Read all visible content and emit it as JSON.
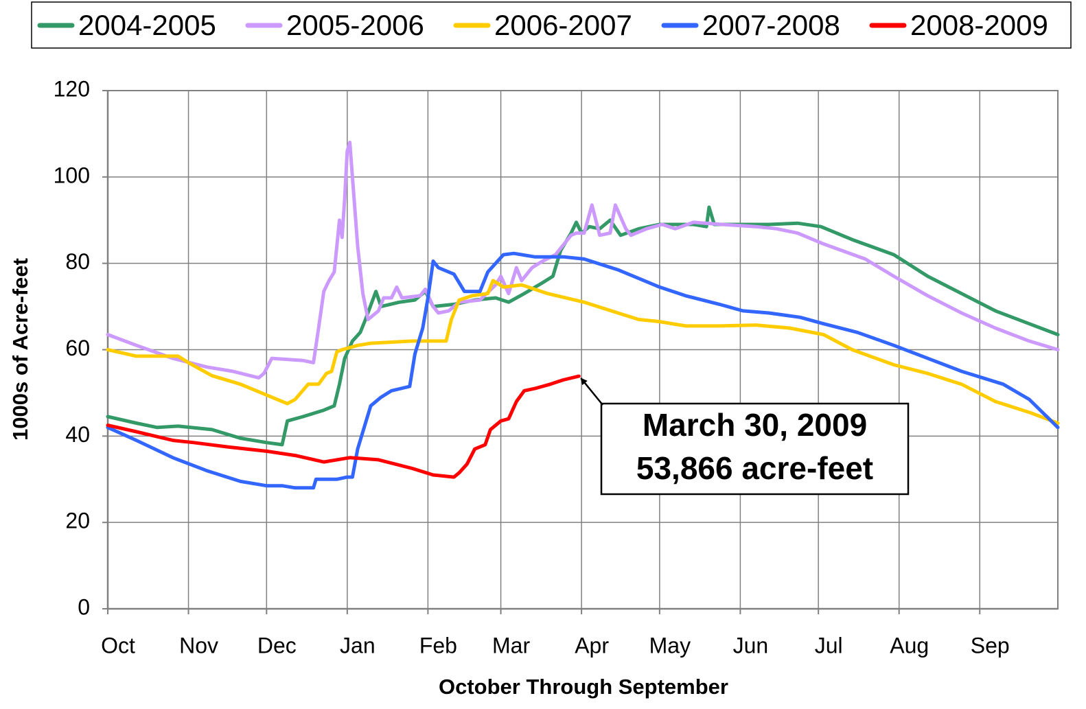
{
  "chart_data": {
    "type": "line",
    "xlabel": "October Through September",
    "ylabel": "1000s of Acre-feet",
    "xlim": [
      0,
      365
    ],
    "xticks": [
      {
        "value": 0,
        "label": "Oct"
      },
      {
        "value": 31,
        "label": "Nov"
      },
      {
        "value": 61,
        "label": "Dec"
      },
      {
        "value": 92,
        "label": "Jan"
      },
      {
        "value": 123,
        "label": "Feb"
      },
      {
        "value": 151,
        "label": "Mar"
      },
      {
        "value": 182,
        "label": "Apr"
      },
      {
        "value": 212,
        "label": "May"
      },
      {
        "value": 243,
        "label": "Jun"
      },
      {
        "value": 273,
        "label": "Jul"
      },
      {
        "value": 304,
        "label": "Aug"
      },
      {
        "value": 335,
        "label": "Sep"
      }
    ],
    "ylim": [
      0,
      120
    ],
    "yticks": [
      0,
      20,
      40,
      60,
      80,
      100,
      120
    ],
    "grid": true,
    "legend": "top",
    "annotation": {
      "lines": [
        "March 30, 2009",
        "53,866 acre-feet"
      ]
    },
    "series": [
      {
        "name": "2004-2005",
        "color": "#339966",
        "x": [
          0,
          11,
          19,
          27,
          40,
          51,
          61,
          67,
          69,
          75,
          83,
          87,
          89,
          91,
          94,
          97,
          99,
          103,
          105,
          112,
          118,
          122,
          125,
          133,
          141,
          149,
          154,
          160,
          167,
          171,
          174,
          178,
          180,
          182,
          185,
          189,
          193,
          197,
          204,
          212,
          225,
          230,
          231,
          233,
          244,
          254,
          265,
          274,
          286,
          302,
          315,
          328,
          341,
          354,
          365
        ],
        "values": [
          44.5,
          43,
          42,
          42.3,
          41.5,
          39.5,
          38.5,
          38,
          43.5,
          44.5,
          46,
          47,
          52,
          58,
          62,
          64,
          67,
          73.5,
          70,
          71,
          71.5,
          73.5,
          70,
          70.5,
          71.5,
          72,
          71,
          73,
          75.5,
          77,
          83,
          87,
          89.5,
          87,
          88.5,
          88,
          90,
          86.5,
          88,
          89,
          89,
          88.5,
          93,
          89,
          89,
          89,
          89.3,
          88.5,
          85.5,
          82,
          77,
          73,
          69,
          66,
          63.5
        ]
      },
      {
        "name": "2005-2006",
        "color": "#cc99ff",
        "x": [
          0,
          11,
          25,
          38,
          48,
          58,
          60,
          63,
          75,
          79,
          81,
          83,
          85,
          87,
          89,
          90,
          91,
          92,
          93,
          94,
          96,
          98,
          100,
          104,
          106,
          109,
          111,
          113,
          120,
          122,
          125,
          127,
          131,
          135,
          143,
          149,
          151,
          154,
          157,
          159,
          163,
          167,
          172,
          178,
          180,
          183,
          186,
          189,
          193,
          195,
          199,
          201,
          207,
          213,
          218,
          225,
          236,
          249,
          257,
          265,
          275,
          291,
          302,
          315,
          328,
          341,
          354,
          365
        ],
        "values": [
          63.5,
          61,
          58,
          56,
          55,
          53.5,
          54.5,
          58,
          57.5,
          57,
          65,
          73.5,
          76,
          78,
          90,
          86,
          95,
          106,
          108,
          100,
          84,
          73,
          67,
          69,
          72,
          72,
          74.5,
          72,
          72.5,
          74,
          70,
          68.5,
          69,
          71,
          71.5,
          75,
          77,
          73,
          79,
          76,
          79,
          80.5,
          82,
          86.5,
          87,
          87,
          93.5,
          86.5,
          87,
          93.5,
          88,
          86.5,
          88,
          89,
          88,
          89.5,
          89,
          88.5,
          88,
          87,
          84.5,
          81,
          77,
          72.5,
          68.5,
          65,
          62,
          60
        ]
      },
      {
        "name": "2006-2007",
        "color": "#ffcc00",
        "x": [
          0,
          11,
          27,
          31,
          40,
          51,
          61,
          69,
          72,
          77,
          81,
          84,
          86,
          88,
          90,
          96,
          101,
          117,
          130,
          132,
          135,
          140,
          146,
          148,
          152,
          159,
          169,
          183,
          196,
          204,
          212,
          222,
          235,
          249,
          262,
          275,
          286,
          302,
          315,
          328,
          341,
          354,
          365
        ],
        "values": [
          60,
          58.5,
          58.5,
          57,
          54,
          52,
          49.5,
          47.5,
          48.5,
          52,
          52,
          54.5,
          55,
          59.5,
          60,
          61,
          61.5,
          62,
          62,
          67,
          71.5,
          72.5,
          73,
          76,
          74.5,
          75,
          73,
          71,
          68.5,
          67,
          66.5,
          65.5,
          65.5,
          65.7,
          65,
          63.5,
          60,
          56.5,
          54.5,
          52,
          48,
          45.5,
          43
        ]
      },
      {
        "name": "2007-2008",
        "color": "#3366ff",
        "x": [
          0,
          11,
          25,
          38,
          51,
          61,
          67,
          72,
          79,
          80,
          88,
          92,
          94,
          96,
          98,
          101,
          105,
          109,
          116,
          118,
          121,
          123,
          125,
          127,
          133,
          137,
          143,
          146,
          149,
          152,
          156,
          164,
          175,
          183,
          196,
          212,
          222,
          235,
          244,
          254,
          266,
          275,
          288,
          302,
          315,
          328,
          344,
          354,
          365
        ],
        "values": [
          42,
          39,
          35,
          32,
          29.5,
          28.5,
          28.5,
          28,
          28,
          30,
          30,
          30.5,
          30.5,
          37,
          41,
          47,
          49,
          50.5,
          51.5,
          59,
          65,
          72,
          80.5,
          79,
          77.5,
          73.5,
          73.5,
          78,
          80,
          82,
          82.3,
          81.5,
          81.5,
          81,
          78.5,
          74.5,
          72.5,
          70.5,
          69,
          68.5,
          67.5,
          66,
          64,
          61,
          58,
          55,
          52,
          48.5,
          42
        ]
      },
      {
        "name": "2008-2009",
        "color": "#ff0000",
        "x": [
          0,
          11,
          25,
          33,
          46,
          61,
          72,
          83,
          93,
          104,
          117,
          125,
          133,
          135,
          138,
          141,
          145,
          147,
          151,
          154,
          157,
          160,
          164,
          170,
          175,
          181
        ],
        "values": [
          42.5,
          41,
          39,
          38.5,
          37.5,
          36.5,
          35.5,
          34,
          35,
          34.5,
          32.5,
          31,
          30.5,
          31.5,
          33.5,
          37,
          38,
          41.5,
          43.5,
          44,
          48,
          50.5,
          51,
          52,
          53,
          53.866
        ]
      }
    ]
  }
}
